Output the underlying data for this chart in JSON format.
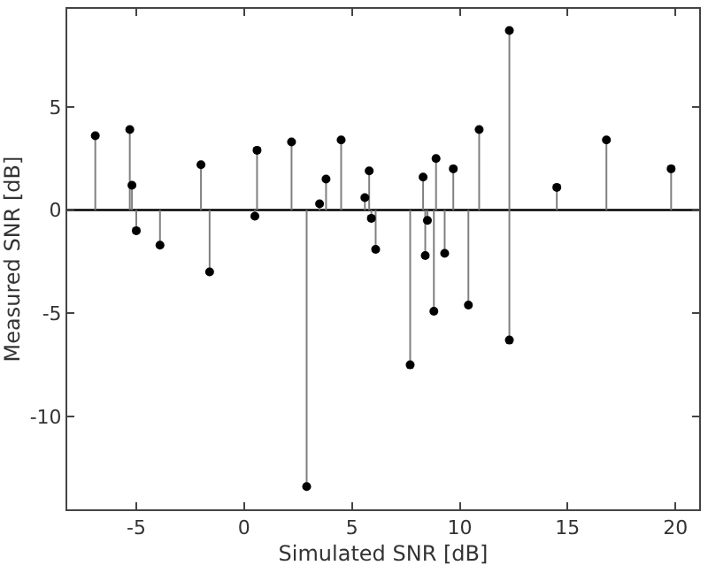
{
  "chart_data": {
    "type": "lollipop",
    "xlabel": "Simulated SNR [dB]",
    "ylabel": "Measured SNR [dB]",
    "x": [
      -6.9,
      -5.3,
      -5.2,
      -5.0,
      -3.9,
      -2.0,
      -1.6,
      0.5,
      0.6,
      2.2,
      2.9,
      3.5,
      3.8,
      4.5,
      5.6,
      5.8,
      5.9,
      6.1,
      7.7,
      8.3,
      8.5,
      8.4,
      8.8,
      8.9,
      9.3,
      9.7,
      10.4,
      10.9,
      12.3,
      12.3,
      14.5,
      16.8,
      19.8
    ],
    "values": [
      3.6,
      3.9,
      1.2,
      -1.0,
      -1.7,
      2.2,
      -3.0,
      -0.3,
      2.9,
      3.3,
      -13.4,
      0.3,
      1.5,
      3.4,
      0.6,
      1.9,
      -0.4,
      -1.9,
      -7.5,
      1.6,
      -0.5,
      -2.2,
      -4.9,
      2.5,
      -2.1,
      2.0,
      -4.6,
      3.9,
      8.7,
      -6.3,
      1.1,
      3.4,
      2.0
    ],
    "color": "#000000",
    "xlim": [
      -8.2,
      21.1
    ],
    "ylim": [
      -14.5,
      9.75
    ],
    "xticks": [
      -5,
      0,
      5,
      10,
      15,
      20
    ],
    "yticks": [
      -10,
      -5,
      0,
      5
    ],
    "ref_lines": [
      {
        "axis": "y",
        "value": 0,
        "color": "#000000"
      }
    ],
    "marker": "circle"
  }
}
